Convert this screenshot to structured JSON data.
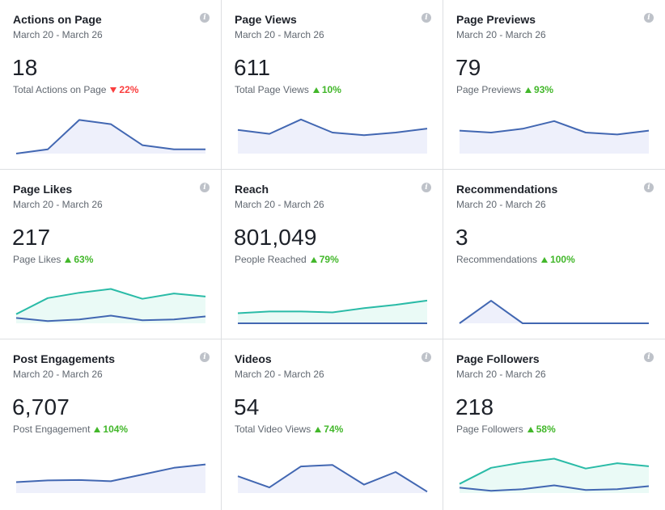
{
  "cards": [
    {
      "title": "Actions on Page",
      "date_range": "March 20 - March 26",
      "value": "18",
      "subtitle": "Total Actions on Page",
      "change": "22%",
      "direction": "down",
      "chart_data": {
        "type": "area",
        "series": [
          {
            "color": "#4267b2",
            "fill": "#eef0fb",
            "values": [
              0,
              1,
              8,
              7,
              2,
              1,
              1
            ]
          }
        ],
        "ylim": [
          0,
          10
        ]
      }
    },
    {
      "title": "Page Views",
      "date_range": "March 20 - March 26",
      "value": "611",
      "subtitle": "Total Page Views",
      "change": "10%",
      "direction": "up",
      "chart_data": {
        "type": "area",
        "series": [
          {
            "color": "#4267b2",
            "fill": "#eef0fb",
            "values": [
              90,
              75,
              130,
              80,
              70,
              80,
              95
            ]
          }
        ],
        "ylim": [
          0,
          160
        ]
      }
    },
    {
      "title": "Page Previews",
      "date_range": "March 20 - March 26",
      "value": "79",
      "subtitle": "Page Previews",
      "change": "93%",
      "direction": "up",
      "chart_data": {
        "type": "area",
        "series": [
          {
            "color": "#4267b2",
            "fill": "#eef0fb",
            "values": [
              12,
              11,
              13,
              17,
              11,
              10,
              12
            ]
          }
        ],
        "ylim": [
          0,
          22
        ]
      }
    },
    {
      "title": "Page Likes",
      "date_range": "March 20 - March 26",
      "value": "217",
      "subtitle": "Page Likes",
      "change": "63%",
      "direction": "up",
      "chart_data": {
        "type": "area",
        "series": [
          {
            "color": "#2abba7",
            "fill": "#eafaf6",
            "values": [
              12,
              33,
              40,
              45,
              32,
              39,
              35
            ]
          },
          {
            "color": "#4267b2",
            "fill": "none",
            "values": [
              7,
              3,
              5,
              10,
              4,
              5,
              9
            ]
          }
        ],
        "ylim": [
          0,
          55
        ]
      }
    },
    {
      "title": "Reach",
      "date_range": "March 20 - March 26",
      "value": "801,049",
      "subtitle": "People Reached",
      "change": "79%",
      "direction": "up",
      "chart_data": {
        "type": "area",
        "series": [
          {
            "color": "#2abba7",
            "fill": "#eafaf6",
            "values": [
              12,
              14,
              14,
              13,
              18,
              22,
              27
            ]
          },
          {
            "color": "#4267b2",
            "fill": "none",
            "values": [
              0,
              0,
              0,
              0,
              0,
              0,
              0
            ]
          }
        ],
        "ylim": [
          0,
          50
        ]
      }
    },
    {
      "title": "Recommendations",
      "date_range": "March 20 - March 26",
      "value": "3",
      "subtitle": "Recommendations",
      "change": "100%",
      "direction": "up",
      "chart_data": {
        "type": "area",
        "series": [
          {
            "color": "#4267b2",
            "fill": "#eef0fb",
            "values": [
              0,
              3,
              0,
              0,
              0,
              0,
              0
            ]
          }
        ],
        "ylim": [
          0,
          5.6
        ]
      }
    },
    {
      "title": "Post Engagements",
      "date_range": "March 20 - March 26",
      "value": "6,707",
      "subtitle": "Post Engagement",
      "change": "104%",
      "direction": "up",
      "chart_data": {
        "type": "area",
        "series": [
          {
            "color": "#4267b2",
            "fill": "#eef0fb",
            "values": [
              13,
              15,
              15.5,
              14,
              22,
              30,
              34
            ]
          }
        ],
        "ylim": [
          0,
          50
        ]
      }
    },
    {
      "title": "Videos",
      "date_range": "March 20 - March 26",
      "value": "54",
      "subtitle": "Total Video Views",
      "change": "74%",
      "direction": "up",
      "chart_data": {
        "type": "area",
        "series": [
          {
            "color": "#4267b2",
            "fill": "#eef0fb",
            "values": [
              12,
              4,
              19,
              20,
              6,
              15,
              1
            ]
          }
        ],
        "ylim": [
          0,
          30
        ]
      }
    },
    {
      "title": "Page Followers",
      "date_range": "March 20 - March 26",
      "value": "218",
      "subtitle": "Page Followers",
      "change": "58%",
      "direction": "up",
      "chart_data": {
        "type": "area",
        "series": [
          {
            "color": "#2abba7",
            "fill": "#eafaf6",
            "values": [
              12,
              33,
              40,
              45,
              32,
              39,
              35
            ]
          },
          {
            "color": "#4267b2",
            "fill": "none",
            "values": [
              7,
              3,
              5,
              10,
              4,
              5,
              9
            ]
          }
        ],
        "ylim": [
          0,
          55
        ]
      }
    }
  ]
}
